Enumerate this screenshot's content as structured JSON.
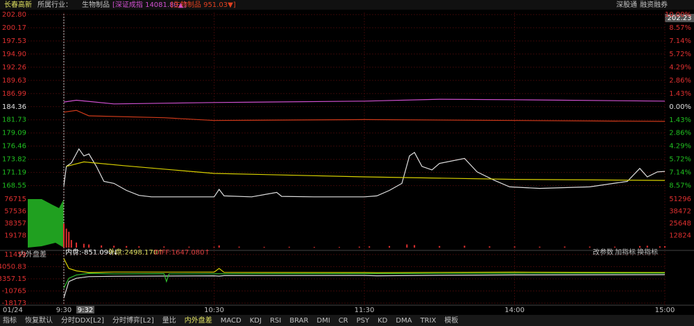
{
  "header": {
    "stock": "长春高新",
    "industry_label": "所属行业：",
    "industry": "生物制品",
    "index1": "[深证成指 14081.80▲]",
    "index2": "[生物制品 951.03▼]",
    "right1": "深股通",
    "right2": "融资融券",
    "price_box": "202.23"
  },
  "indicator_header": {
    "name": "内外盘差",
    "inner": "内盘:-851.090↓",
    "outer": "外盘:2498.170↑",
    "diff": "DIFF:1647.080↑",
    "btn1": "改参数",
    "btn2": "加指标",
    "btn3": "换指标"
  },
  "time_axis": {
    "date": "01/24",
    "cursor": "9:32"
  },
  "tabs": [
    "指标",
    "恢复默认",
    "分时DDX[L2]",
    "分时博弈[L2]",
    "量比",
    "内外盘差",
    "MACD",
    "KDJ",
    "RSI",
    "BRAR",
    "DMI",
    "CR",
    "PSY",
    "KD",
    "DMA",
    "TRIX",
    "模板"
  ],
  "chart_data": [
    {
      "type": "line",
      "xlim": [
        0,
        240
      ],
      "xticks": [
        {
          "value": 0,
          "label": "9:30"
        },
        {
          "value": 60,
          "label": "10:30"
        },
        {
          "value": 120,
          "label": "11:30"
        },
        {
          "value": 180,
          "label": "14:00"
        },
        {
          "value": 240,
          "label": "15:00"
        }
      ],
      "ylim": [
        166.0,
        202.8
      ],
      "yticks": [
        {
          "value": 202.8,
          "label": "202.80"
        },
        200.17,
        197.53,
        {
          "value": 194.9,
          "label": "194.90"
        },
        192.26,
        189.63,
        186.99,
        184.36,
        181.73,
        179.09,
        176.46,
        173.82,
        171.19,
        168.55
      ],
      "y2lim": [
        -9.96,
        10.0
      ],
      "y2ticks": [
        {
          "value": 10,
          "label": "10.00%"
        },
        {
          "value": 8.57,
          "label": "8.57%"
        },
        {
          "value": 7.14,
          "label": "7.14%"
        },
        {
          "value": 5.72,
          "label": "5.72%"
        },
        {
          "value": 4.29,
          "label": "4.29%"
        },
        {
          "value": 2.86,
          "label": "2.86%"
        },
        {
          "value": 1.43,
          "label": "1.43%"
        },
        {
          "value": 0,
          "label": "0.00%"
        },
        {
          "value": -1.43,
          "label": "1.43%"
        },
        {
          "value": -2.86,
          "label": "2.86%"
        },
        {
          "value": -4.29,
          "label": "4.29%"
        },
        {
          "value": -5.72,
          "label": "5.72%"
        },
        {
          "value": -7.14,
          "label": "7.14%"
        },
        {
          "value": -8.57,
          "label": "8.57%"
        }
      ],
      "grid": true,
      "series": [
        {
          "color": "#e0e0e0",
          "x": [
            0,
            1,
            3,
            6,
            8,
            10,
            13,
            16,
            20,
            25,
            30,
            35,
            50,
            60,
            62,
            64,
            75,
            85,
            87,
            100,
            120,
            125,
            130,
            135,
            138,
            140,
            143,
            147,
            150,
            160,
            165,
            172,
            178,
            190,
            210,
            225,
            230,
            233,
            237,
            240
          ],
          "values": [
            168.5,
            172.4,
            173.1,
            175.9,
            174.5,
            174.9,
            172.4,
            169.4,
            169.0,
            167.6,
            166.6,
            166.3,
            166.3,
            166.3,
            167.8,
            166.5,
            166.3,
            167.2,
            166.4,
            166.3,
            166.3,
            166.5,
            167.6,
            169.0,
            174.5,
            175.2,
            172.4,
            171.7,
            173.0,
            174.0,
            171.3,
            169.6,
            168.3,
            168.0,
            168.3,
            169.4,
            172.0,
            170.3,
            171.3,
            171.4
          ]
        },
        {
          "color": "#d8d000",
          "x": [
            1,
            8,
            25,
            60,
            120,
            180,
            240
          ],
          "values": [
            172.4,
            173.3,
            172.5,
            171.0,
            170.3,
            169.8,
            169.6
          ]
        },
        {
          "color": "#d050d0",
          "axis": "y2",
          "x": [
            0,
            5,
            20,
            60,
            120,
            150,
            180,
            240
          ],
          "values": [
            0.5,
            0.7,
            0.3,
            0.45,
            0.6,
            0.8,
            0.75,
            0.6
          ]
        },
        {
          "color": "#d03a1a",
          "axis": "y2",
          "x": [
            0,
            5,
            10,
            40,
            60,
            120,
            180,
            240
          ],
          "values": [
            -0.6,
            -0.4,
            -1.0,
            -1.2,
            -1.5,
            -1.4,
            -1.5,
            -1.6
          ]
        }
      ]
    },
    {
      "type": "bar",
      "xlim": [
        0,
        240
      ],
      "ylim": [
        0,
        81000
      ],
      "yticks": [
        76715,
        57536,
        38357,
        19178
      ],
      "y2lim": [
        0,
        54160
      ],
      "y2ticks": [
        51296,
        38472,
        25648,
        12824
      ],
      "series": [
        {
          "color": "#e03030",
          "x": [
            0,
            1,
            2,
            3,
            5,
            8,
            10,
            15,
            20,
            25,
            30,
            40,
            50,
            60,
            62,
            70,
            80,
            90,
            100,
            110,
            118,
            122,
            130,
            137,
            140,
            150,
            160,
            170,
            180,
            190,
            200,
            210,
            220,
            230,
            233,
            238,
            240
          ],
          "values": [
            38000,
            30000,
            25000,
            12000,
            8000,
            6000,
            5000,
            3500,
            3000,
            2500,
            2000,
            1800,
            1500,
            1200,
            3500,
            1500,
            1200,
            1300,
            1100,
            1000,
            1500,
            2000,
            2500,
            5000,
            4000,
            2500,
            3000,
            2000,
            1800,
            1500,
            1700,
            1600,
            1500,
            2500,
            3000,
            2000,
            2200
          ]
        }
      ]
    },
    {
      "type": "line",
      "xlim": [
        0,
        240
      ],
      "ylim": [
        -18173,
        11459
      ],
      "yticks": [
        11459,
        4050.83,
        -3357.15,
        -10765,
        -18173
      ],
      "series": [
        {
          "color": "#d8d000",
          "x": [
            0,
            2,
            5,
            10,
            20,
            60,
            62,
            64,
            120,
            125,
            150,
            180,
            240
          ],
          "values": [
            9000,
            3000,
            1500,
            500,
            800,
            700,
            3000,
            600,
            500,
            400,
            600,
            700,
            500
          ]
        },
        {
          "color": "#e0e0e0",
          "x": [
            0,
            2,
            5,
            10,
            20,
            60,
            62,
            64,
            120,
            125,
            150,
            180,
            240
          ],
          "values": [
            -15000,
            -5000,
            -3000,
            -2000,
            -1800,
            -1500,
            -1700,
            -1400,
            -1300,
            -1500,
            -1200,
            -1000,
            -800
          ]
        },
        {
          "color": "#30c030",
          "x": [
            0,
            2,
            5,
            10,
            20,
            40,
            41,
            42,
            120,
            150,
            180,
            240
          ],
          "values": [
            -9000,
            -3000,
            -1000,
            0,
            -300,
            -200,
            -5000,
            -300,
            -200,
            -100,
            0,
            100
          ]
        }
      ]
    }
  ]
}
